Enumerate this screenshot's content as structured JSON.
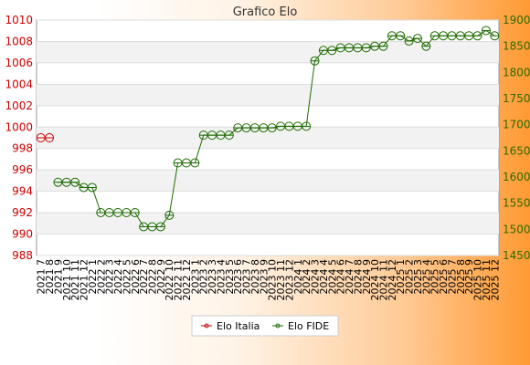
{
  "chart_data": {
    "type": "line",
    "title": "Grafico Elo",
    "x": [
      "2021 7",
      "2021 8",
      "2021 9",
      "2021 10",
      "2021 11",
      "2021 12",
      "2022 1",
      "2022 2",
      "2022 3",
      "2022 4",
      "2022 5",
      "2022 6",
      "2022 7",
      "2022 8",
      "2022 9",
      "2022 10",
      "2022 11",
      "2022 12",
      "2023 1",
      "2023 2",
      "2023 3",
      "2023 4",
      "2023 5",
      "2023 6",
      "2023 7",
      "2023 8",
      "2023 9",
      "2023 10",
      "2023 11",
      "2023 12",
      "2024 1",
      "2024 2",
      "2024 3",
      "2024 4",
      "2024 5",
      "2024 6",
      "2024 7",
      "2024 8",
      "2024 9",
      "2024 10",
      "2024 11",
      "2024 12",
      "2025 1",
      "2025 2",
      "2025 3",
      "2025 4",
      "2025 5",
      "2025 6",
      "2025 7",
      "2025 8",
      "2025 9",
      "2025 10",
      "2025 11",
      "2025 12"
    ],
    "y_left": {
      "label": "",
      "min": 988,
      "max": 1010,
      "ticks": [
        988,
        990,
        992,
        994,
        996,
        998,
        1000,
        1002,
        1004,
        1006,
        1008,
        1010
      ]
    },
    "y_right": {
      "label": "",
      "min": 1450,
      "max": 1900,
      "ticks": [
        1450,
        1500,
        1550,
        1600,
        1650,
        1700,
        1750,
        1800,
        1850,
        1900
      ]
    },
    "grid": true,
    "legend_placement": "bottom-center",
    "series": [
      {
        "name": "Elo Italia",
        "axis": "left",
        "color": "#cc0000",
        "values": [
          999,
          999,
          null,
          null,
          null,
          null,
          null,
          null,
          null,
          null,
          null,
          null,
          null,
          null,
          null,
          null,
          null,
          null,
          null,
          null,
          null,
          null,
          null,
          null,
          null,
          null,
          null,
          null,
          null,
          null,
          null,
          null,
          null,
          null,
          null,
          null,
          null,
          null,
          null,
          null,
          null,
          null,
          null,
          null,
          null,
          null,
          null,
          null,
          null,
          null,
          null,
          null,
          null,
          null
        ]
      },
      {
        "name": "Elo FIDE",
        "axis": "right",
        "color": "#1e6b00",
        "values": [
          null,
          null,
          1590,
          1590,
          1590,
          1580,
          1580,
          1532,
          1532,
          1532,
          1532,
          1532,
          1505,
          1505,
          1505,
          1527,
          1627,
          1627,
          1627,
          1680,
          1680,
          1680,
          1680,
          1694,
          1694,
          1694,
          1694,
          1694,
          1697,
          1697,
          1697,
          1697,
          1822,
          1842,
          1842,
          1847,
          1847,
          1847,
          1847,
          1850,
          1850,
          1870,
          1870,
          1860,
          1865,
          1850,
          1870,
          1870,
          1870,
          1870,
          1870,
          1870,
          1880,
          1870
        ]
      }
    ]
  }
}
